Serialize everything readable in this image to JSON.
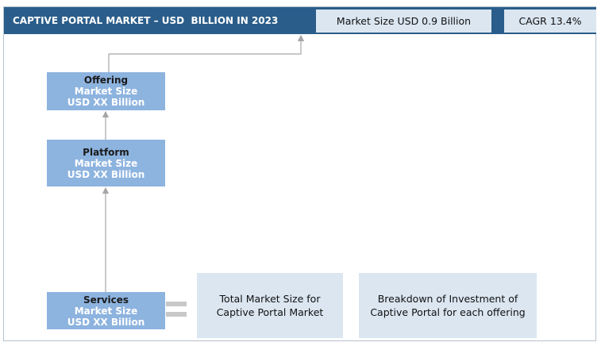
{
  "header": {
    "title": "CAPTIVE PORTAL MARKET – USD  BILLION IN 2023",
    "market_size": "Market Size USD 0.9 Billion",
    "cagr": "CAGR 13.4%"
  },
  "boxes": {
    "offering": {
      "name": "Offering",
      "line1": "Market Size",
      "line2": "USD XX Billion"
    },
    "platform": {
      "name": "Platform",
      "line1": "Market Size",
      "line2": "USD XX Billion"
    },
    "services": {
      "name": "Services",
      "line1": "Market Size",
      "line2": "USD XX Billion"
    }
  },
  "cards": {
    "total": "Total Market Size for Captive Portal Market",
    "breakdown": "Breakdown of Investment of Captive Portal for each offering"
  },
  "colors": {
    "header_bg": "#2a5d8a",
    "box_bg": "#8db3df",
    "card_bg": "#dbe6f1",
    "connector": "#a6a6a6"
  }
}
